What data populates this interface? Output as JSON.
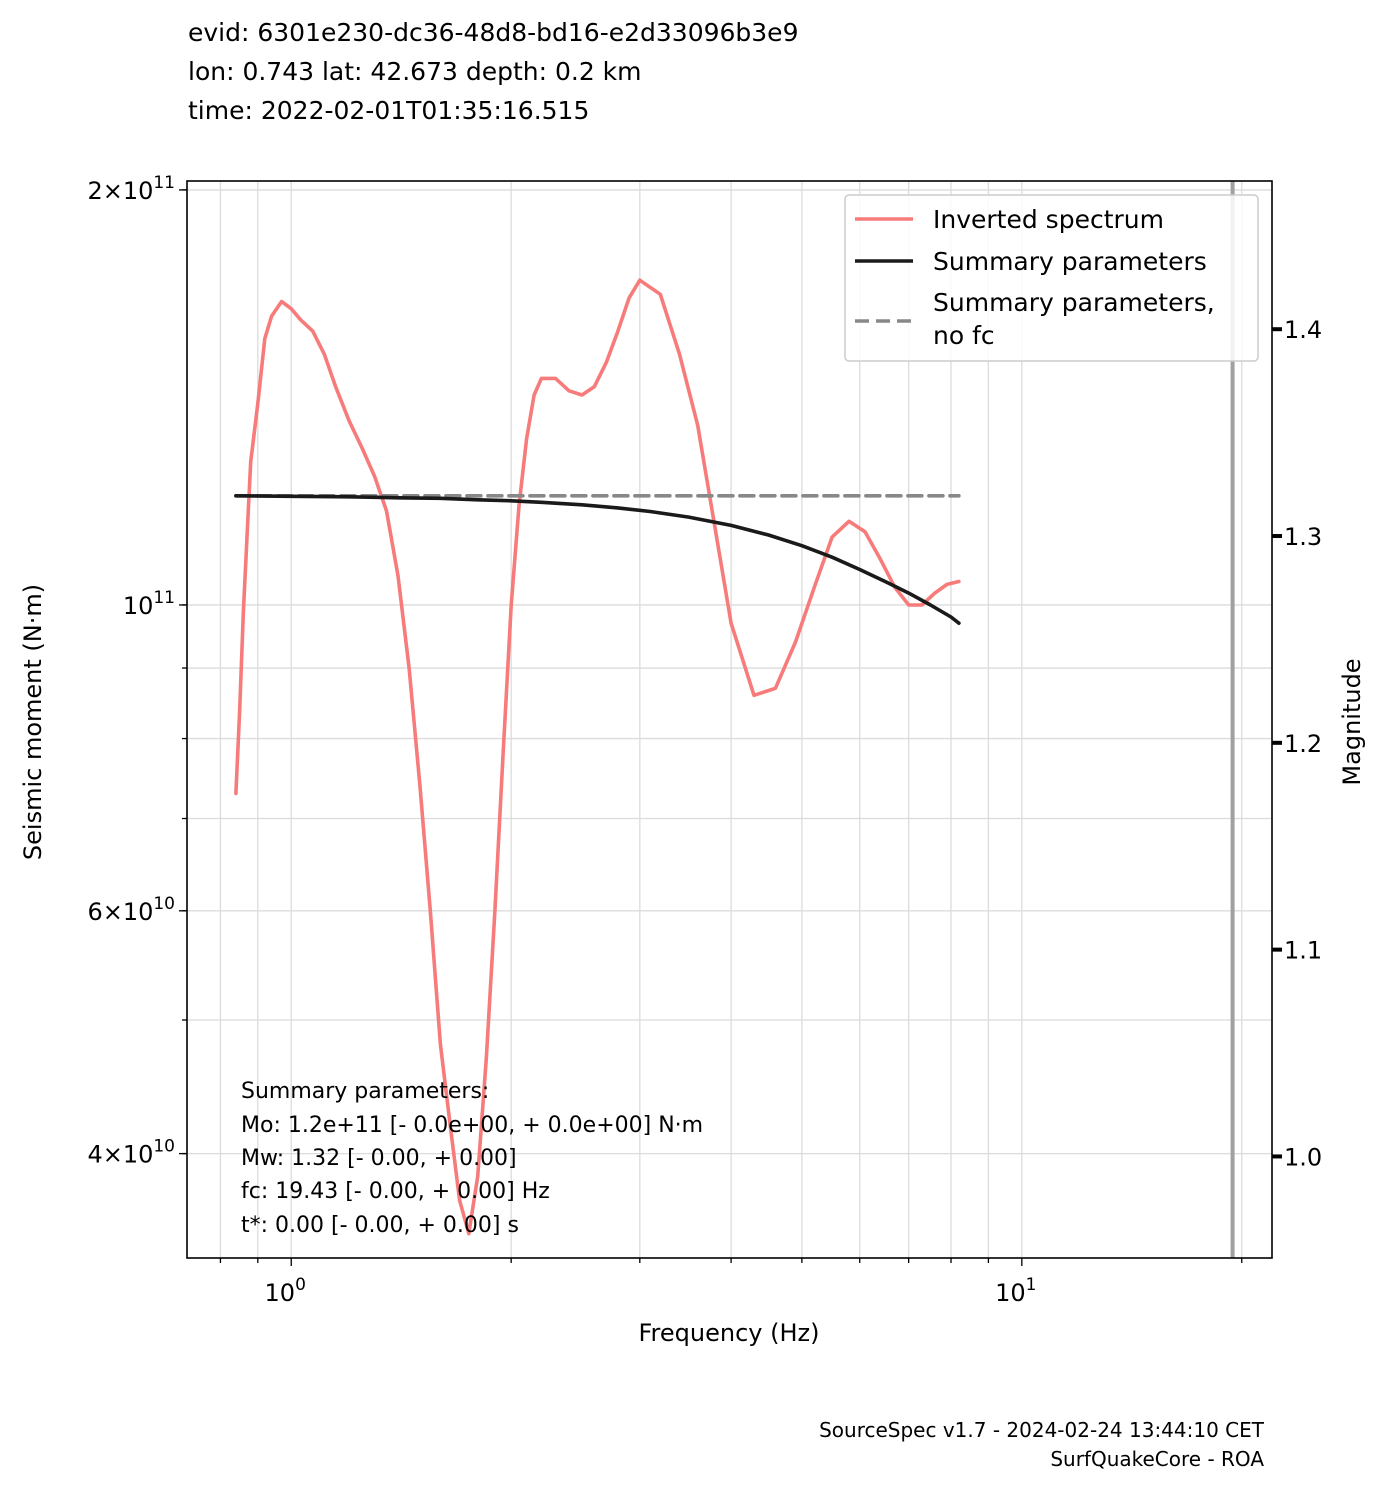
{
  "header": {
    "line1": "evid: 6301e230-dc36-48d8-bd16-e2d33096b3e9",
    "line2": "lon: 0.743 lat: 42.673 depth: 0.2 km",
    "line3": "time: 2022-02-01T01:35:16.515"
  },
  "footer": {
    "line1": "SourceSpec v1.7 - 2024-02-24 13:44:10 CET",
    "line2": "SurfQuakeCore - ROA"
  },
  "summary_box": {
    "lines": [
      "Summary parameters:",
      "Mo: 1.2e+11 [- 0.0e+00, + 0.0e+00] N·m",
      "Mw: 1.32 [- 0.00, + 0.00]",
      "fc: 19.43 [- 0.00, + 0.00] Hz",
      "t*: 0.00 [- 0.00, + 0.00] s"
    ]
  },
  "legend": {
    "placement": "top-right",
    "items": [
      {
        "lines": [
          "Inverted spectrum"
        ],
        "color": "#f77b7b",
        "style": "solid"
      },
      {
        "lines": [
          "Summary parameters"
        ],
        "color": "#1a1a1a",
        "style": "solid"
      },
      {
        "lines": [
          "Summary parameters,",
          "no fc"
        ],
        "color": "#888888",
        "style": "dashed"
      }
    ]
  },
  "chart_data": {
    "type": "line",
    "xlabel": "Frequency (Hz)",
    "ylabel": "Seismic moment (N·m)",
    "y2label": "Magnitude",
    "xscale": "log",
    "yscale": "log",
    "xlim": [
      0.72,
      22.0
    ],
    "ylim": [
      33600000000.0,
      203000000000.0
    ],
    "grid": true,
    "x_ticks_major": [
      {
        "value": 1,
        "base": "10",
        "exp": "0"
      },
      {
        "value": 10,
        "base": "10",
        "exp": "1"
      }
    ],
    "y_ticks_labeled": [
      {
        "value": 200000000000,
        "mant": "2",
        "exp": "11"
      },
      {
        "value": 100000000000,
        "mant": "",
        "exp": "11"
      },
      {
        "value": 60000000000,
        "mant": "6",
        "exp": "10"
      },
      {
        "value": 40000000000,
        "mant": "4",
        "exp": "10"
      }
    ],
    "y2_ticks": [
      1.0,
      1.1,
      1.2,
      1.3,
      1.4
    ],
    "series": [
      {
        "name": "Inverted spectrum",
        "color": "#f77b7b",
        "x": [
          0.84,
          0.85,
          0.86,
          0.87,
          0.88,
          0.9,
          0.92,
          0.94,
          0.97,
          1.0,
          1.03,
          1.07,
          1.11,
          1.15,
          1.2,
          1.25,
          1.3,
          1.35,
          1.4,
          1.45,
          1.5,
          1.55,
          1.6,
          1.65,
          1.7,
          1.75,
          1.8,
          1.85,
          1.9,
          1.95,
          2.0,
          2.05,
          2.1,
          2.15,
          2.2,
          2.3,
          2.4,
          2.5,
          2.6,
          2.7,
          2.8,
          2.9,
          3.0,
          3.2,
          3.4,
          3.6,
          3.8,
          4.0,
          4.3,
          4.6,
          4.9,
          5.2,
          5.5,
          5.8,
          6.1,
          6.4,
          6.7,
          7.0,
          7.3,
          7.6,
          7.9,
          8.2
        ],
        "values": [
          73000000000.0,
          84000000000.0,
          99000000000.0,
          112000000000.0,
          127000000000.0,
          140000000000.0,
          156000000000.0,
          162000000000.0,
          166000000000.0,
          164000000000.0,
          161000000000.0,
          158000000000.0,
          152000000000.0,
          144000000000.0,
          136000000000.0,
          130000000000.0,
          124000000000.0,
          117000000000.0,
          105000000000.0,
          90000000000.0,
          74000000000.0,
          60000000000.0,
          48000000000.0,
          42000000000.0,
          37000000000.0,
          35000000000.0,
          38500000000.0,
          47000000000.0,
          60000000000.0,
          78000000000.0,
          100000000000.0,
          118000000000.0,
          132000000000.0,
          142000000000.0,
          146000000000.0,
          146000000000.0,
          143000000000.0,
          142000000000.0,
          144000000000.0,
          150000000000.0,
          158000000000.0,
          167000000000.0,
          172000000000.0,
          168000000000.0,
          152000000000.0,
          135000000000.0,
          114000000000.0,
          97000000000.0,
          86000000000.0,
          87000000000.0,
          94000000000.0,
          103000000000.0,
          112000000000.0,
          115000000000.0,
          113000000000.0,
          108000000000.0,
          103000000000.0,
          100000000000.0,
          100000000000.0,
          102000000000.0,
          103500000000.0,
          104000000000.0
        ]
      },
      {
        "name": "Summary parameters",
        "color": "#1a1a1a",
        "x": [
          0.84,
          1.0,
          1.2,
          1.4,
          1.6,
          1.8,
          2.0,
          2.2,
          2.5,
          2.8,
          3.1,
          3.5,
          4.0,
          4.5,
          5.0,
          5.5,
          6.0,
          6.5,
          7.0,
          7.5,
          8.0,
          8.2
        ],
        "values": [
          120000000000.0,
          119900000000.0,
          119800000000.0,
          119600000000.0,
          119500000000.0,
          119200000000.0,
          119000000000.0,
          118700000000.0,
          118200000000.0,
          117600000000.0,
          116900000000.0,
          115800000000.0,
          114200000000.0,
          112400000000.0,
          110400000000.0,
          108300000000.0,
          106100000000.0,
          104000000000.0,
          102000000000.0,
          100000000000.0,
          98000000000.0,
          97000000000.0
        ]
      },
      {
        "name": "Summary parameters, no fc",
        "color": "#888888",
        "x": [
          0.84,
          8.2
        ],
        "values": [
          120000000000.0,
          120000000000.0
        ]
      }
    ],
    "vertical_line": {
      "x": 19.43,
      "color": "#a0a0a0"
    }
  }
}
